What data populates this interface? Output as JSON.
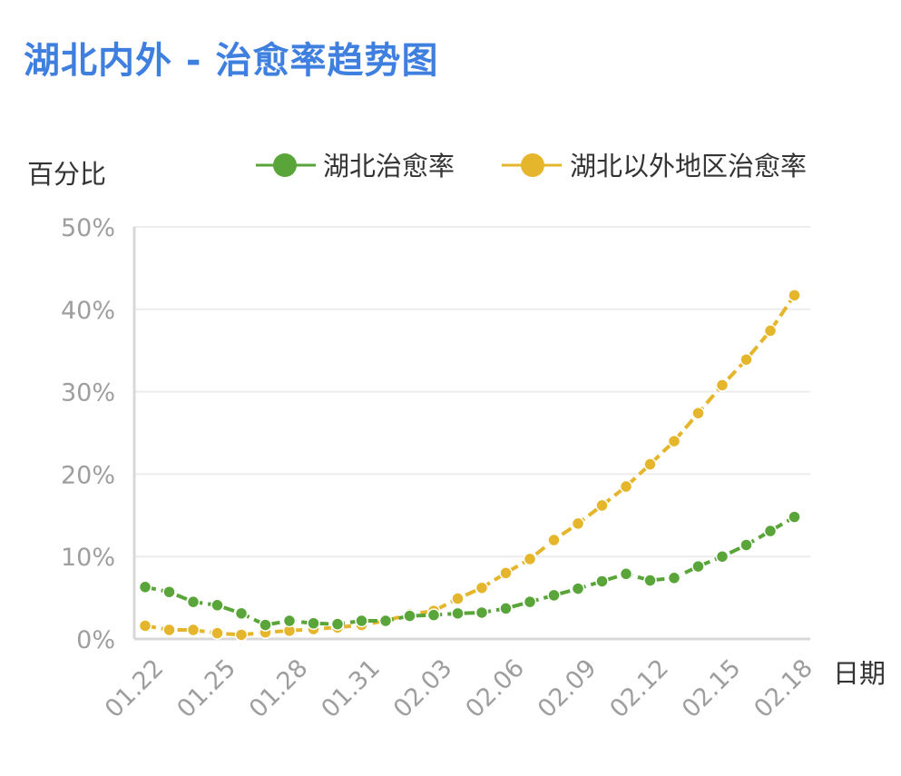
{
  "title": "湖北内外 - 治愈率趋势图",
  "chart_data": {
    "type": "line",
    "title": "湖北内外 - 治愈率趋势图",
    "ylabel": "百分比",
    "xlabel": "日期",
    "ylim": [
      0,
      50
    ],
    "yticks": [
      "0%",
      "10%",
      "20%",
      "30%",
      "40%",
      "50%"
    ],
    "xtick_labels": [
      "01.22",
      "01.25",
      "01.28",
      "01.31",
      "02.03",
      "02.06",
      "02.09",
      "02.12",
      "02.15",
      "02.18"
    ],
    "grid": true,
    "legend_position": "top",
    "x": [
      "01.22",
      "01.23",
      "01.24",
      "01.25",
      "01.26",
      "01.27",
      "01.28",
      "01.29",
      "01.30",
      "01.31",
      "02.01",
      "02.02",
      "02.03",
      "02.04",
      "02.05",
      "02.06",
      "02.07",
      "02.08",
      "02.09",
      "02.10",
      "02.11",
      "02.12",
      "02.13",
      "02.14",
      "02.15",
      "02.16",
      "02.17",
      "02.18"
    ],
    "series": [
      {
        "name": "湖北治愈率",
        "color": "#5aa53a",
        "values": [
          6.3,
          5.7,
          4.5,
          4.1,
          3.1,
          1.7,
          2.2,
          1.9,
          1.8,
          2.2,
          2.2,
          2.8,
          2.9,
          3.1,
          3.2,
          3.7,
          4.5,
          5.3,
          6.1,
          7.0,
          7.9,
          7.1,
          7.4,
          8.8,
          10.0,
          11.4,
          13.1,
          14.8
        ]
      },
      {
        "name": "湖北以外地区治愈率",
        "color": "#e5b62c",
        "values": [
          1.6,
          1.1,
          1.1,
          0.7,
          0.5,
          0.8,
          1.0,
          1.2,
          1.4,
          1.7,
          2.2,
          3.0,
          3.4,
          4.9,
          6.2,
          8.0,
          9.7,
          12.0,
          14.0,
          16.2,
          18.5,
          21.2,
          24.0,
          27.4,
          30.8,
          33.9,
          37.4,
          41.7
        ]
      }
    ]
  }
}
